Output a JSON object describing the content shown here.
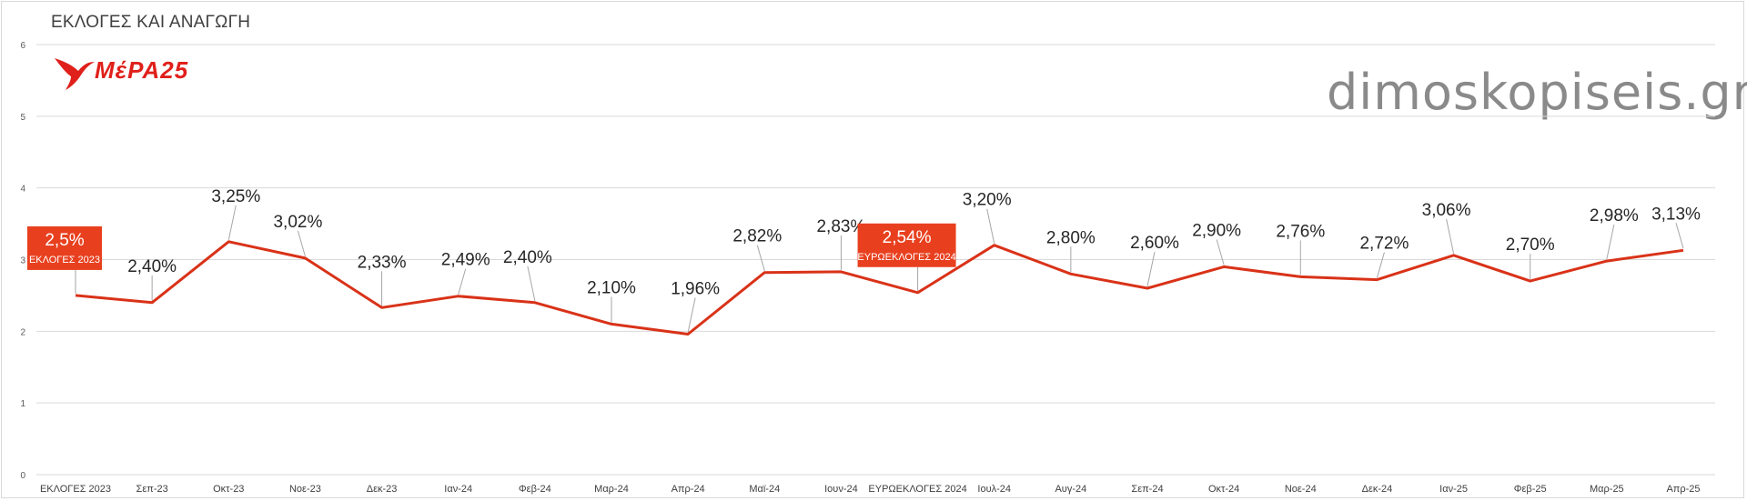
{
  "header": {
    "title": "ΕΚΛΟΓΕΣ ΚΑΙ ΑΝΑΓΩΓΗ",
    "brand": "dimoskopiseis.gr",
    "party_logo_text": "ΜέΡΑ25"
  },
  "colors": {
    "line": "#d93218",
    "highlight_fill": "#e8401f",
    "logo": "#e0201b",
    "grid": "#d9d9d9",
    "leader": "#a6a6a6"
  },
  "chart_data": {
    "type": "line",
    "title": "ΕΚΛΟΓΕΣ ΚΑΙ ΑΝΑΓΩΓΗ",
    "xlabel": "",
    "ylabel": "",
    "ylim": [
      0,
      6
    ],
    "yticks": [
      "0",
      "1",
      "2",
      "3",
      "4",
      "5",
      "6"
    ],
    "grid": true,
    "categories": [
      "ΕΚΛΟΓΕΣ 2023",
      "Σεπ-23",
      "Οκτ-23",
      "Νοε-23",
      "Δεκ-23",
      "Ιαν-24",
      "Φεβ-24",
      "Μαρ-24",
      "Απρ-24",
      "Μαϊ-24",
      "Ιουν-24",
      "ΕΥΡΩΕΚΛΟΓΕΣ 2024",
      "Ιουλ-24",
      "Αυγ-24",
      "Σεπ-24",
      "Οκτ-24",
      "Νοε-24",
      "Δεκ-24",
      "Ιαν-25",
      "Φεβ-25",
      "Μαρ-25",
      "Απρ-25"
    ],
    "series": [
      {
        "name": "ΜέΡΑ25",
        "values": [
          2.5,
          2.4,
          3.25,
          3.02,
          2.33,
          2.49,
          2.4,
          2.1,
          1.96,
          2.82,
          2.83,
          2.54,
          3.2,
          2.8,
          2.6,
          2.9,
          2.76,
          2.72,
          3.06,
          2.7,
          2.98,
          3.13
        ]
      }
    ],
    "data_labels": [
      "2,5%",
      "2,40%",
      "3,25%",
      "3,02%",
      "2,33%",
      "2,49%",
      "2,40%",
      "2,10%",
      "1,96%",
      "2,82%",
      "2,83%",
      "2,54%",
      "3,20%",
      "2,80%",
      "2,60%",
      "2,90%",
      "2,76%",
      "2,72%",
      "3,06%",
      "2,70%",
      "2,98%",
      "3,13%"
    ],
    "highlights": [
      {
        "index": 0,
        "value_label": "2,5%",
        "sublabel": "ΕΚΛΟΓΕΣ 2023"
      },
      {
        "index": 11,
        "value_label": "2,54%",
        "sublabel": "ΕΥΡΩΕΚΛΟΓΕΣ 2024"
      }
    ]
  }
}
